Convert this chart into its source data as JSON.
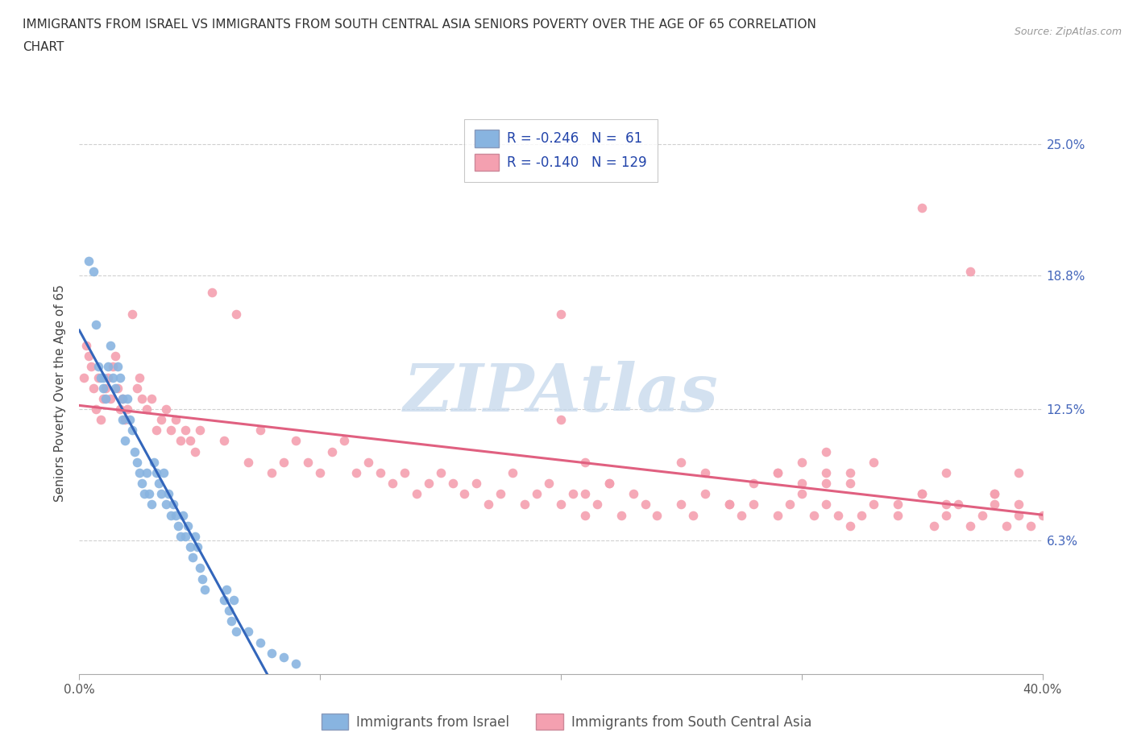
{
  "title_line1": "IMMIGRANTS FROM ISRAEL VS IMMIGRANTS FROM SOUTH CENTRAL ASIA SENIORS POVERTY OVER THE AGE OF 65 CORRELATION",
  "title_line2": "CHART",
  "source_text": "Source: ZipAtlas.com",
  "ylabel": "Seniors Poverty Over the Age of 65",
  "xlim": [
    0.0,
    0.4
  ],
  "ylim": [
    0.0,
    0.265
  ],
  "xtick_vals": [
    0.0,
    0.1,
    0.2,
    0.3,
    0.4
  ],
  "xtick_labels": [
    "0.0%",
    "",
    "",
    "",
    "40.0%"
  ],
  "ytick_vals": [
    0.063,
    0.125,
    0.188,
    0.25
  ],
  "ytick_labels": [
    "6.3%",
    "12.5%",
    "18.8%",
    "25.0%"
  ],
  "grid_color": "#d0d0d0",
  "watermark": "ZIPAtlas",
  "watermark_color": "#c5d8ec",
  "israel_color": "#88b4e0",
  "israel_line_color": "#3366bb",
  "sca_color": "#f4a0b0",
  "sca_line_color": "#e06080",
  "israel_R": -0.246,
  "israel_N": 61,
  "sca_R": -0.14,
  "sca_N": 129,
  "israel_x": [
    0.004,
    0.006,
    0.007,
    0.008,
    0.009,
    0.01,
    0.01,
    0.011,
    0.012,
    0.013,
    0.014,
    0.015,
    0.016,
    0.017,
    0.018,
    0.018,
    0.019,
    0.02,
    0.021,
    0.022,
    0.023,
    0.024,
    0.025,
    0.026,
    0.027,
    0.028,
    0.029,
    0.03,
    0.031,
    0.032,
    0.033,
    0.034,
    0.035,
    0.036,
    0.037,
    0.038,
    0.039,
    0.04,
    0.041,
    0.042,
    0.043,
    0.044,
    0.045,
    0.046,
    0.047,
    0.048,
    0.049,
    0.05,
    0.051,
    0.052,
    0.06,
    0.061,
    0.062,
    0.063,
    0.064,
    0.065,
    0.07,
    0.075,
    0.08,
    0.085,
    0.09
  ],
  "israel_y": [
    0.195,
    0.19,
    0.165,
    0.145,
    0.14,
    0.14,
    0.135,
    0.13,
    0.145,
    0.155,
    0.14,
    0.135,
    0.145,
    0.14,
    0.13,
    0.12,
    0.11,
    0.13,
    0.12,
    0.115,
    0.105,
    0.1,
    0.095,
    0.09,
    0.085,
    0.095,
    0.085,
    0.08,
    0.1,
    0.095,
    0.09,
    0.085,
    0.095,
    0.08,
    0.085,
    0.075,
    0.08,
    0.075,
    0.07,
    0.065,
    0.075,
    0.065,
    0.07,
    0.06,
    0.055,
    0.065,
    0.06,
    0.05,
    0.045,
    0.04,
    0.035,
    0.04,
    0.03,
    0.025,
    0.035,
    0.02,
    0.02,
    0.015,
    0.01,
    0.008,
    0.005
  ],
  "sca_x": [
    0.002,
    0.003,
    0.004,
    0.005,
    0.006,
    0.007,
    0.008,
    0.009,
    0.01,
    0.011,
    0.012,
    0.013,
    0.014,
    0.015,
    0.016,
    0.017,
    0.018,
    0.019,
    0.02,
    0.022,
    0.024,
    0.025,
    0.026,
    0.028,
    0.03,
    0.032,
    0.034,
    0.036,
    0.038,
    0.04,
    0.042,
    0.044,
    0.046,
    0.048,
    0.05,
    0.055,
    0.06,
    0.065,
    0.07,
    0.075,
    0.08,
    0.085,
    0.09,
    0.095,
    0.1,
    0.105,
    0.11,
    0.115,
    0.12,
    0.125,
    0.13,
    0.135,
    0.14,
    0.145,
    0.15,
    0.155,
    0.16,
    0.165,
    0.17,
    0.175,
    0.18,
    0.185,
    0.19,
    0.195,
    0.2,
    0.205,
    0.21,
    0.215,
    0.22,
    0.225,
    0.23,
    0.235,
    0.24,
    0.25,
    0.255,
    0.26,
    0.27,
    0.275,
    0.28,
    0.29,
    0.295,
    0.3,
    0.305,
    0.31,
    0.315,
    0.32,
    0.325,
    0.33,
    0.34,
    0.35,
    0.355,
    0.36,
    0.365,
    0.37,
    0.375,
    0.38,
    0.385,
    0.39,
    0.395,
    0.4,
    0.31,
    0.32,
    0.35,
    0.36,
    0.37,
    0.38,
    0.25,
    0.26,
    0.2,
    0.21,
    0.22,
    0.29,
    0.3,
    0.31,
    0.2,
    0.21,
    0.27,
    0.28,
    0.39,
    0.35,
    0.36,
    0.31,
    0.32,
    0.33,
    0.34,
    0.29,
    0.3,
    0.38,
    0.39
  ],
  "sca_y": [
    0.14,
    0.155,
    0.15,
    0.145,
    0.135,
    0.125,
    0.14,
    0.12,
    0.13,
    0.135,
    0.14,
    0.13,
    0.145,
    0.15,
    0.135,
    0.125,
    0.13,
    0.12,
    0.125,
    0.17,
    0.135,
    0.14,
    0.13,
    0.125,
    0.13,
    0.115,
    0.12,
    0.125,
    0.115,
    0.12,
    0.11,
    0.115,
    0.11,
    0.105,
    0.115,
    0.18,
    0.11,
    0.17,
    0.1,
    0.115,
    0.095,
    0.1,
    0.11,
    0.1,
    0.095,
    0.105,
    0.11,
    0.095,
    0.1,
    0.095,
    0.09,
    0.095,
    0.085,
    0.09,
    0.095,
    0.09,
    0.085,
    0.09,
    0.08,
    0.085,
    0.095,
    0.08,
    0.085,
    0.09,
    0.08,
    0.085,
    0.075,
    0.08,
    0.09,
    0.075,
    0.085,
    0.08,
    0.075,
    0.08,
    0.075,
    0.085,
    0.08,
    0.075,
    0.08,
    0.075,
    0.08,
    0.085,
    0.075,
    0.08,
    0.075,
    0.07,
    0.075,
    0.08,
    0.075,
    0.085,
    0.07,
    0.075,
    0.08,
    0.07,
    0.075,
    0.08,
    0.07,
    0.075,
    0.07,
    0.075,
    0.095,
    0.09,
    0.22,
    0.095,
    0.19,
    0.085,
    0.1,
    0.095,
    0.17,
    0.085,
    0.09,
    0.095,
    0.1,
    0.105,
    0.12,
    0.1,
    0.08,
    0.09,
    0.095,
    0.085,
    0.08,
    0.09,
    0.095,
    0.1,
    0.08,
    0.095,
    0.09,
    0.085,
    0.08
  ]
}
